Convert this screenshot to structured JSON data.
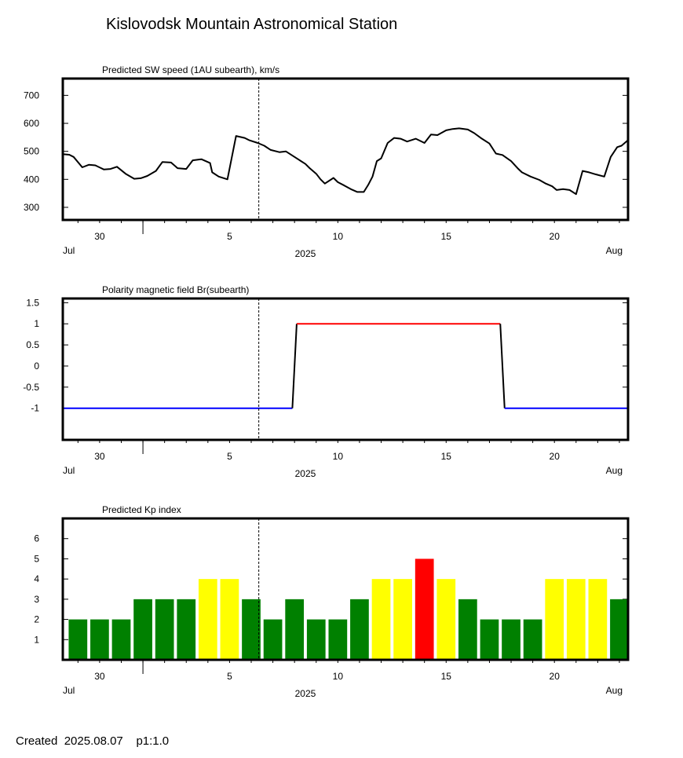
{
  "title": "Kislovodsk Mountain Astronomical Station",
  "footer": "Created  2025.08.07    p1:1.0",
  "colors": {
    "green": "#008000",
    "yellow": "#ffff00",
    "red": "#ff0000",
    "blue": "#0000ff",
    "br_red": "#ff0000"
  },
  "chart_data": [
    {
      "type": "line",
      "title": "Predicted SW speed (1AU subearth), km/s",
      "xlim": [
        28.3,
        54.4
      ],
      "ylim": [
        255,
        760
      ],
      "yticks": [
        300,
        400,
        500,
        600,
        700
      ],
      "xtick_days": [
        30,
        5,
        10,
        15,
        20
      ],
      "month_left": "Jul",
      "month_right": "Aug",
      "year": "2025",
      "current_time": 37.35,
      "series": [
        {
          "x": [
            28.3,
            28.6,
            28.8,
            29.2,
            29.5,
            29.8,
            30.2,
            30.5,
            30.8,
            31.2,
            31.6,
            31.9,
            32.2,
            32.6,
            32.9,
            33.3,
            33.6,
            34.0,
            34.3,
            34.7,
            35.1,
            35.2,
            35.5,
            35.9,
            36.3,
            36.7,
            36.9,
            37.3,
            37.6,
            37.9,
            38.3,
            38.6,
            39.0,
            39.3,
            39.5,
            39.7,
            40.0,
            40.2,
            40.4,
            40.8,
            41.0,
            41.3,
            41.6,
            41.9,
            42.2,
            42.4,
            42.6,
            42.8,
            43.0,
            43.3,
            43.6,
            43.9,
            44.2,
            44.6,
            45.0,
            45.3,
            45.6,
            46.0,
            46.3,
            46.6,
            47.0,
            47.3,
            47.6,
            48.0,
            48.3,
            48.6,
            49.0,
            49.3,
            49.5,
            49.9,
            50.3,
            50.6,
            50.9,
            51.1,
            51.4,
            51.7,
            52.0,
            52.3,
            52.6,
            52.9,
            53.3,
            53.6,
            53.9,
            54.1,
            54.4
          ],
          "y": [
            490,
            488,
            480,
            443,
            452,
            450,
            435,
            437,
            445,
            420,
            402,
            404,
            412,
            430,
            462,
            460,
            440,
            437,
            468,
            472,
            458,
            425,
            410,
            400,
            555,
            548,
            540,
            530,
            520,
            505,
            497,
            500,
            480,
            465,
            455,
            440,
            420,
            400,
            385,
            405,
            390,
            378,
            365,
            355,
            355,
            380,
            410,
            465,
            475,
            530,
            548,
            545,
            535,
            545,
            530,
            560,
            558,
            575,
            580,
            582,
            578,
            565,
            548,
            528,
            492,
            487,
            465,
            440,
            425,
            410,
            398,
            385,
            375,
            362,
            365,
            362,
            347,
            430,
            425,
            418,
            410,
            480,
            515,
            520,
            540
          ],
          "color": "#000000"
        }
      ]
    },
    {
      "type": "line",
      "title": "Polarity magnetic field  Br(subearth)",
      "xlim": [
        28.3,
        54.4
      ],
      "ylim": [
        -1.75,
        1.6
      ],
      "yticks": [
        -1,
        -0.5,
        0,
        0.5,
        1,
        1.5
      ],
      "xtick_days": [
        30,
        5,
        10,
        15,
        20
      ],
      "month_left": "Jul",
      "month_right": "Aug",
      "year": "2025",
      "current_time": 37.35,
      "series": [
        {
          "segments": [
            {
              "x": [
                28.3,
                38.9
              ],
              "y": [
                -1,
                -1
              ],
              "color": "#0000ff"
            },
            {
              "x": [
                38.9,
                39.1
              ],
              "y": [
                -1,
                1
              ],
              "color": "#000000"
            },
            {
              "x": [
                39.1,
                48.5
              ],
              "y": [
                1,
                1
              ],
              "color": "#ff0000"
            },
            {
              "x": [
                48.5,
                48.7
              ],
              "y": [
                1,
                -1
              ],
              "color": "#000000"
            },
            {
              "x": [
                48.7,
                54.4
              ],
              "y": [
                -1,
                -1
              ],
              "color": "#0000ff"
            }
          ]
        }
      ]
    },
    {
      "type": "bar",
      "title": "Predicted Kp index",
      "xlim": [
        28.3,
        54.4
      ],
      "ylim": [
        0,
        7
      ],
      "yticks": [
        1,
        2,
        3,
        4,
        5,
        6
      ],
      "xtick_days": [
        30,
        5,
        10,
        15,
        20
      ],
      "month_left": "Jul",
      "month_right": "Aug",
      "year": "2025",
      "current_time": 37.35,
      "days": [
        29,
        30,
        31,
        32,
        33,
        34,
        35,
        36,
        37,
        38,
        39,
        40,
        41,
        42,
        43,
        44,
        45,
        46,
        47,
        48,
        49,
        50,
        51,
        52,
        53,
        54
      ],
      "values": [
        2,
        2,
        2,
        3,
        3,
        3,
        4,
        4,
        3,
        2,
        3,
        2,
        2,
        3,
        4,
        4,
        5,
        4,
        3,
        2,
        2,
        2,
        4,
        4,
        4,
        3
      ],
      "bar_colors": [
        "green",
        "green",
        "green",
        "green",
        "green",
        "green",
        "yellow",
        "yellow",
        "green",
        "green",
        "green",
        "green",
        "green",
        "green",
        "yellow",
        "yellow",
        "red",
        "yellow",
        "green",
        "green",
        "green",
        "green",
        "yellow",
        "yellow",
        "yellow",
        "green"
      ]
    }
  ]
}
